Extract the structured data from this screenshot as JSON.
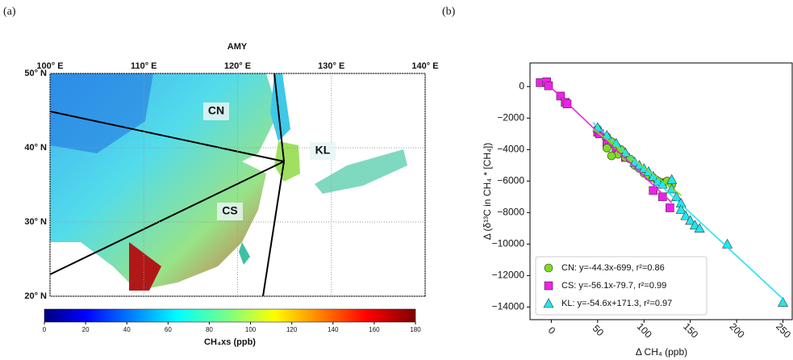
{
  "chart_data": [
    {
      "type": "map",
      "panel": "(a)",
      "title": "AMY",
      "xlim": [
        100,
        140
      ],
      "ylim": [
        20,
        50
      ],
      "xticks": [
        {
          "value": 100,
          "label": "100° E"
        },
        {
          "value": 110,
          "label": "110° E"
        },
        {
          "value": 120,
          "label": "120° E"
        },
        {
          "value": 130,
          "label": "130° E"
        },
        {
          "value": 140,
          "label": "140° E"
        }
      ],
      "yticks": [
        {
          "value": 20,
          "label": "20° N"
        },
        {
          "value": 30,
          "label": "30° N"
        },
        {
          "value": 40,
          "label": "40° N"
        },
        {
          "value": 50,
          "label": "50° N"
        }
      ],
      "regions": [
        "CN",
        "CS",
        "KL"
      ],
      "colorbar": {
        "label": "CH₄xs (ppb)",
        "lim": [
          0,
          180
        ],
        "ticks": [
          0,
          20,
          40,
          60,
          80,
          100,
          120,
          140,
          160,
          180
        ]
      }
    },
    {
      "type": "scatter",
      "panel": "(b)",
      "x_label": "Δ CH₄  (ppb)",
      "y_label": "Δ (δ¹³C in CH₄ * [CH₄])",
      "xlim": [
        -23,
        260
      ],
      "xticks": [
        0,
        50,
        100,
        150,
        200,
        250
      ],
      "ylim": [
        -14800,
        1500
      ],
      "yticks": [
        {
          "value": -14000,
          "label": "−14000"
        },
        {
          "value": -12000,
          "label": "−12000"
        },
        {
          "value": -10000,
          "label": "−10000"
        },
        {
          "value": -8000,
          "label": "−8000"
        },
        {
          "value": -6000,
          "label": "−6000"
        },
        {
          "value": -4000,
          "label": "−4000"
        },
        {
          "value": -2000,
          "label": "−2000"
        },
        0
      ],
      "legend": "lower left",
      "series": [
        {
          "name": "CN: y=-44.3x-699, r²=0.86",
          "color": "#7fdc1f",
          "marker": "circle",
          "x": [
            50,
            60,
            65,
            70,
            72,
            75,
            80,
            85,
            90,
            95,
            100,
            105,
            110,
            115,
            120,
            125,
            130,
            65,
            60
          ],
          "y": [
            -2700,
            -3200,
            -3500,
            -3800,
            -4300,
            -4000,
            -4500,
            -4600,
            -5000,
            -5200,
            -5500,
            -5700,
            -5800,
            -6000,
            -6100,
            -6000,
            -6200,
            -4400,
            -3900
          ],
          "fit_x": [
            45,
            140
          ],
          "fit_y": [
            -2693,
            -6901
          ]
        },
        {
          "name": "CS: y=-56.1x-79.7, r²=0.99",
          "color": "#f020e8",
          "marker": "square",
          "x": [
            -12,
            -5,
            -3,
            10,
            15,
            17,
            50,
            52,
            60,
            70,
            80,
            110,
            120,
            128
          ],
          "y": [
            250,
            300,
            50,
            -600,
            -1000,
            -1100,
            -2900,
            -3000,
            -3600,
            -4000,
            -4500,
            -6600,
            -7000,
            -7700
          ],
          "fit_x": [
            -10,
            130
          ],
          "fit_y": [
            481,
            -7373
          ]
        },
        {
          "name": "KL: y=-54.6x+171.3, r²=0.97",
          "color": "#22e6f0",
          "marker": "triangle",
          "x": [
            50,
            60,
            70,
            80,
            90,
            95,
            100,
            105,
            110,
            115,
            120,
            130,
            135,
            140,
            140,
            145,
            150,
            155,
            160,
            190,
            250,
            130
          ],
          "y": [
            -2600,
            -3100,
            -3600,
            -4200,
            -4800,
            -5000,
            -5200,
            -5400,
            -5700,
            -6000,
            -6200,
            -6500,
            -7000,
            -7400,
            -7800,
            -8200,
            -8500,
            -8800,
            -9000,
            -10000,
            -13700,
            -5900
          ],
          "fit_x": [
            45,
            250
          ],
          "fit_y": [
            -2286,
            -13479
          ]
        }
      ]
    }
  ]
}
